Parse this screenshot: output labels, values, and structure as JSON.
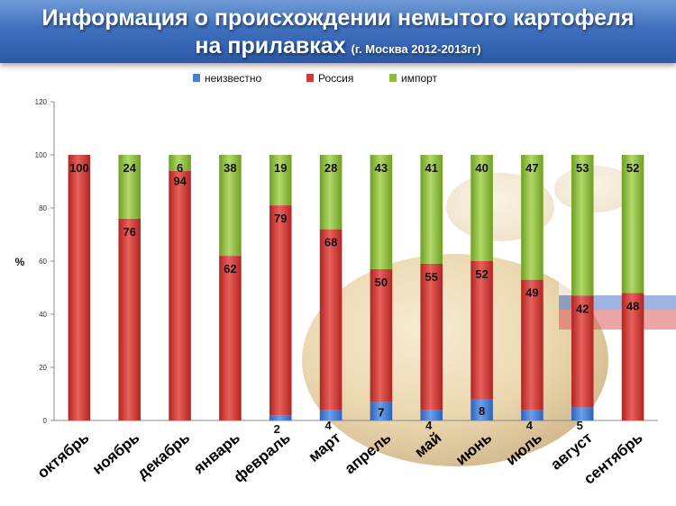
{
  "header": {
    "title_line1": "Информация о происхождении немытого картофеля",
    "title_line2": "на прилавках",
    "subtitle": "(г. Москва 2012-2013гг)"
  },
  "colors": {
    "unknown": "#4a7fd0",
    "russia": "#d13a38",
    "import": "#8dbb3c",
    "banner": "#3f70bd"
  },
  "chart_data": {
    "type": "bar",
    "stacked": true,
    "ylabel": "%",
    "ylim": [
      0,
      120
    ],
    "yticks": [
      0,
      20,
      40,
      60,
      80,
      100,
      120
    ],
    "legend_position": "top",
    "categories": [
      "октябрь",
      "ноябрь",
      "декабрь",
      "январь",
      "февраль",
      "март",
      "апрель",
      "май",
      "июнь",
      "июль",
      "август",
      "сентябрь"
    ],
    "series": [
      {
        "name": "неизвестно",
        "color": "#4a7fd0",
        "values": [
          0,
          0,
          0,
          0,
          2,
          4,
          7,
          4,
          8,
          4,
          5,
          0
        ]
      },
      {
        "name": "Россия",
        "color": "#d13a38",
        "values": [
          100,
          76,
          94,
          62,
          79,
          68,
          50,
          55,
          52,
          49,
          42,
          48
        ]
      },
      {
        "name": "импорт",
        "color": "#8dbb3c",
        "values": [
          0,
          24,
          6,
          38,
          19,
          28,
          43,
          41,
          40,
          47,
          53,
          52
        ]
      }
    ]
  }
}
